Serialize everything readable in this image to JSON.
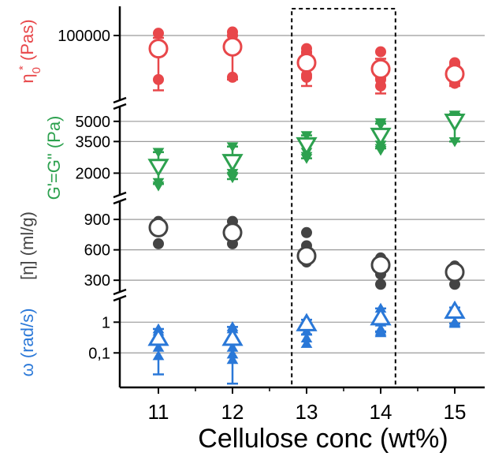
{
  "chart_data": {
    "type": "scatter",
    "xlabel": "Cellulose conc (wt%)",
    "x_ticks": [
      "11",
      "12",
      "13",
      "14",
      "15"
    ],
    "x": [
      11,
      12,
      13,
      14,
      15
    ],
    "highlight_box": {
      "x_range": [
        12.8,
        14.2
      ],
      "style": "dashed"
    },
    "grid": true,
    "panels": [
      {
        "id": "eta0",
        "ylabel_main": "η",
        "ylabel_sub": "0",
        "ylabel_sup": "*",
        "ylabel_rest": " (Pas)",
        "color": "#e8474a",
        "marker": "circle",
        "scale": "log",
        "ylim": [
          25000,
          200000
        ],
        "ticks": [
          {
            "value": 100000,
            "label": "100000"
          }
        ],
        "gridlines": [
          100000
        ],
        "series": {
          "mean": [
            75000,
            78000,
            55000,
            48000,
            43000
          ],
          "err_low": [
            30000,
            38000,
            33000,
            28000,
            33000
          ],
          "err_high": [
            95000,
            100000,
            70000,
            60000,
            55000
          ],
          "replicates": [
            [
              105000,
              38000,
              75000
            ],
            [
              108000,
              40000,
              100000,
              82000
            ],
            [
              75000,
              68000,
              40000,
              42000,
              57000
            ],
            [
              70000,
              33000,
              38000,
              40000,
              42000
            ],
            [
              55000,
              52000,
              48000,
              45000,
              35000
            ]
          ]
        }
      },
      {
        "id": "crossover",
        "ylabel": "G'=G\" (Pa)",
        "color": "#2da14f",
        "marker": "triangle-down",
        "scale": "log",
        "ylim": [
          1400,
          6500
        ],
        "ticks": [
          {
            "value": 2000,
            "label": "2000"
          },
          {
            "value": 3500,
            "label": "3500"
          },
          {
            "value": 5000,
            "label": "5000"
          }
        ],
        "gridlines": [
          2000,
          3500,
          5000
        ],
        "series": {
          "mean": [
            2250,
            2450,
            3300,
            3900,
            5000
          ],
          "err_low": [
            1650,
            1800,
            2600,
            3100,
            3500
          ],
          "err_high": [
            2900,
            3200,
            3900,
            4800,
            5600
          ],
          "replicates": [
            [
              2900,
              1700,
              1600
            ],
            [
              3200,
              2000,
              1900,
              1850
            ],
            [
              3900,
              3500,
              3100,
              2900,
              2700,
              2600
            ],
            [
              4900,
              4700,
              3600,
              3300,
              3100,
              3000
            ],
            [
              5600,
              5400,
              3500
            ]
          ]
        }
      },
      {
        "id": "intrinsic-viscosity",
        "ylabel": "[η] (ml/g)",
        "color": "#444444",
        "marker": "circle",
        "scale": "linear",
        "ylim": [
          200,
          1080
        ],
        "ticks": [
          {
            "value": 300,
            "label": "300"
          },
          {
            "value": 600,
            "label": "600"
          },
          {
            "value": 900,
            "label": "900"
          }
        ],
        "gridlines": [
          300,
          600,
          900
        ],
        "series": {
          "mean": [
            820,
            770,
            540,
            450,
            380
          ],
          "replicates": [
            [
              880,
              810,
              660
            ],
            [
              880,
              830,
              660
            ],
            [
              770,
              640,
              480
            ],
            [
              520,
              480,
              360,
              260
            ],
            [
              440,
              380,
              260
            ]
          ]
        }
      },
      {
        "id": "omega",
        "ylabel": "ω (rad/s)",
        "color": "#2a78d8",
        "marker": "triangle-up",
        "scale": "log",
        "ylim": [
          0.008,
          6
        ],
        "ticks": [
          {
            "value": 0.1,
            "label": "0,1"
          },
          {
            "value": 1,
            "label": "1"
          }
        ],
        "gridlines": [
          0.1,
          1
        ],
        "series": {
          "mean": [
            0.3,
            0.3,
            0.9,
            1.4,
            2.3
          ],
          "err_low": [
            0.02,
            0.01,
            0.4,
            0.5,
            0.9
          ],
          "err_high": [
            0.6,
            0.7,
            1.2,
            2.8,
            3.0
          ],
          "replicates": [
            [
              0.6,
              0.5,
              0.15,
              0.08
            ],
            [
              0.7,
              0.6,
              0.15,
              0.09,
              0.06
            ],
            [
              1.0,
              0.5,
              0.3,
              0.2
            ],
            [
              2.8,
              1.5,
              1.0,
              0.6,
              0.5,
              0.45
            ],
            [
              3.0,
              2.0,
              1.0,
              0.9
            ]
          ]
        }
      }
    ]
  }
}
